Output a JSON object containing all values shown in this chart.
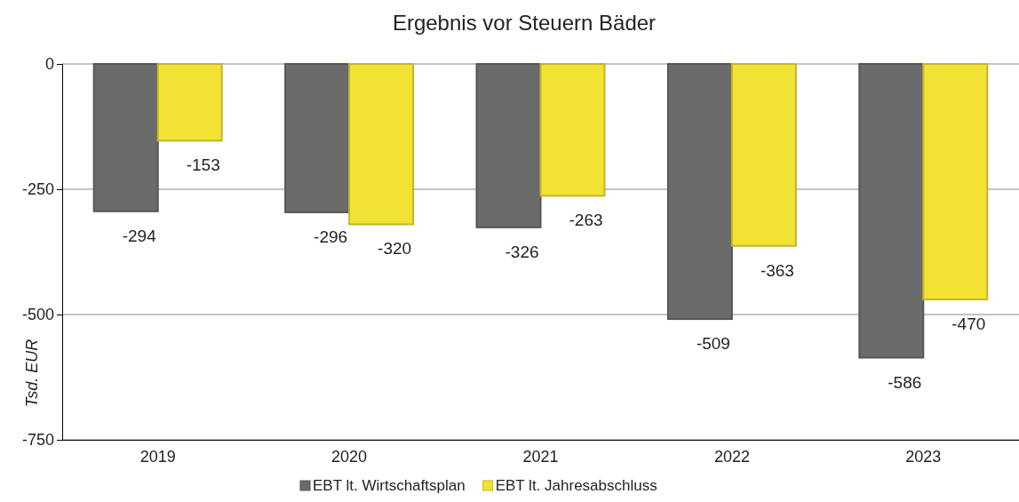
{
  "chart_data": {
    "type": "bar",
    "title": "Ergebnis vor Steuern Bäder",
    "ylabel": "Tsd. EUR",
    "categories": [
      "2019",
      "2020",
      "2021",
      "2022",
      "2023"
    ],
    "series": [
      {
        "name": "EBT lt. Wirtschaftsplan",
        "color": "#6b6b6b",
        "values": [
          -294,
          -296,
          -326,
          -509,
          -586
        ]
      },
      {
        "name": "EBT lt. Jahresabschluss",
        "color": "#f2e233",
        "values": [
          -153,
          -320,
          -263,
          -363,
          -470
        ]
      }
    ],
    "ylim": [
      -750,
      0
    ],
    "yticks": [
      -750,
      -500,
      -250,
      0
    ],
    "grid": "y",
    "legend": "bottom",
    "data_labels": true
  }
}
